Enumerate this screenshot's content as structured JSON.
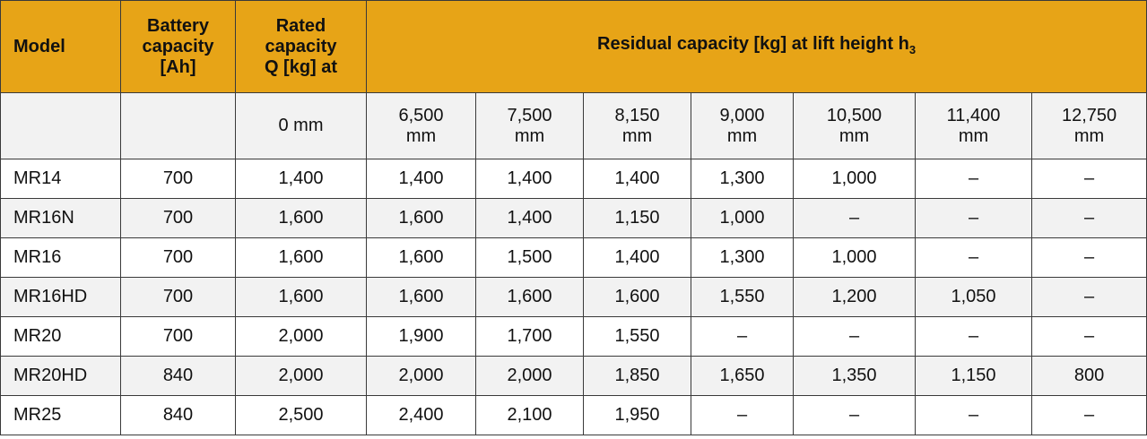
{
  "table": {
    "header": {
      "model": "Model",
      "battery": "Battery\ncapacity\n[Ah]",
      "rated": "Rated\ncapacity\nQ  [kg] at",
      "residual": "Residual capacity [kg] at lift height h",
      "residual_subscript": "3"
    },
    "heights": [
      "0 mm",
      "6,500\nmm",
      "7,500\nmm",
      "8,150\nmm",
      "9,000\nmm",
      "10,500\nmm",
      "11,400\nmm",
      "12,750\nmm"
    ],
    "rows": [
      [
        "MR14",
        "700",
        "1,400",
        "1,400",
        "1,400",
        "1,400",
        "1,300",
        "1,000",
        "–",
        "–"
      ],
      [
        "MR16N",
        "700",
        "1,600",
        "1,600",
        "1,400",
        "1,150",
        "1,000",
        "–",
        "–",
        "–"
      ],
      [
        "MR16",
        "700",
        "1,600",
        "1,600",
        "1,500",
        "1,400",
        "1,300",
        "1,000",
        "–",
        "–"
      ],
      [
        "MR16HD",
        "700",
        "1,600",
        "1,600",
        "1,600",
        "1,600",
        "1,550",
        "1,200",
        "1,050",
        "–"
      ],
      [
        "MR20",
        "700",
        "2,000",
        "1,900",
        "1,700",
        "1,550",
        "–",
        "–",
        "–",
        "–"
      ],
      [
        "MR20HD",
        "840",
        "2,000",
        "2,000",
        "2,000",
        "1,850",
        "1,650",
        "1,350",
        "1,150",
        "800"
      ],
      [
        "MR25",
        "840",
        "2,500",
        "2,400",
        "2,100",
        "1,950",
        "–",
        "–",
        "–",
        "–"
      ]
    ]
  }
}
